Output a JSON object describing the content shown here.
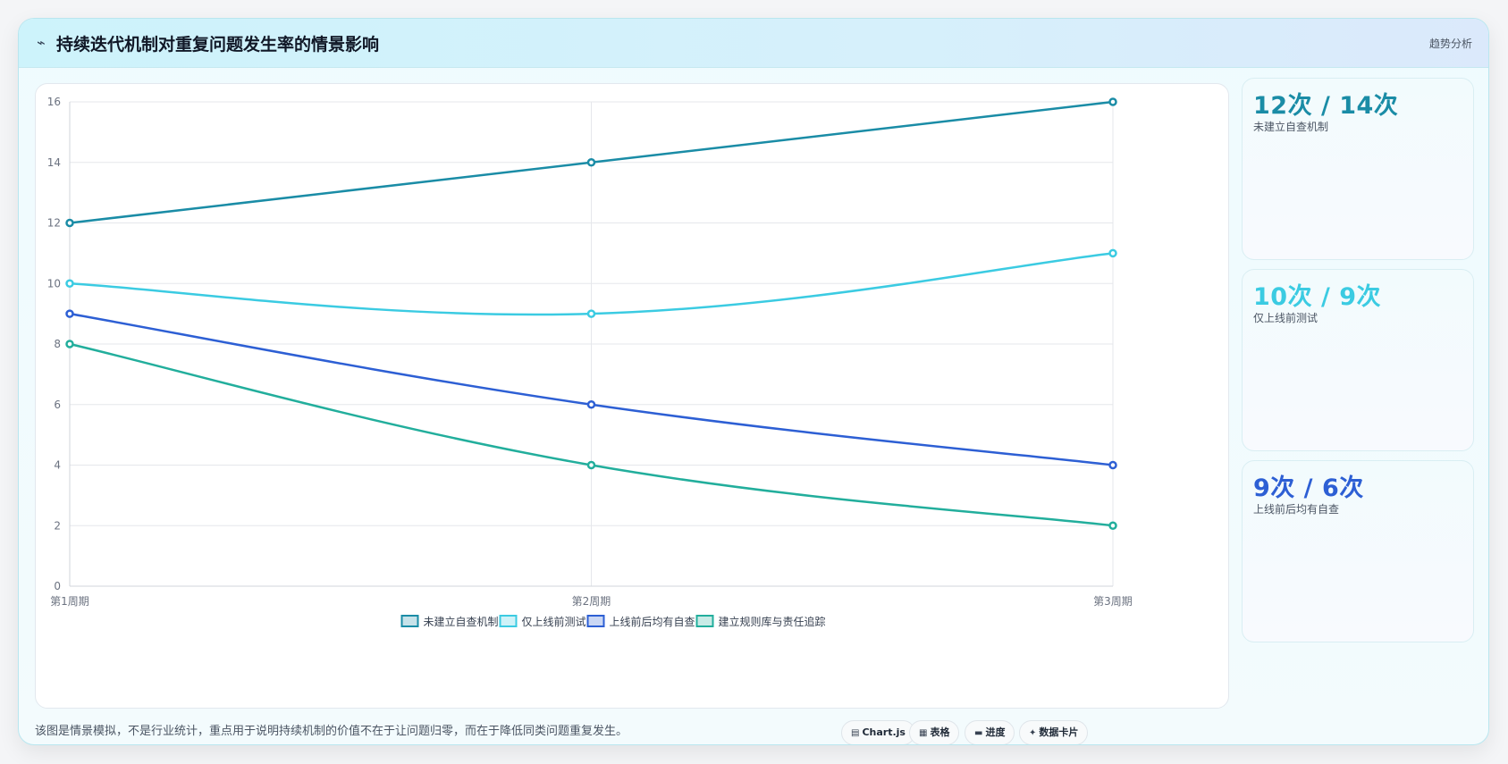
{
  "header": {
    "title_icon": "⌁",
    "title": "持续迭代机制对重复问题发生率的情景影响",
    "badge": "趋势分析"
  },
  "chart_data": {
    "type": "line",
    "categories": [
      "第1周期",
      "第2周期",
      "第3周期"
    ],
    "ylim": [
      0,
      16
    ],
    "yticks": [
      0,
      2,
      4,
      6,
      8,
      10,
      12,
      14,
      16
    ],
    "grid": true,
    "legend_position": "bottom",
    "series": [
      {
        "name": "未建立自查机制",
        "color": "#1a8ca6",
        "values": [
          12,
          14,
          16
        ]
      },
      {
        "name": "仅上线前测试",
        "color": "#3bcbe2",
        "values": [
          10,
          9,
          11
        ]
      },
      {
        "name": "上线前后均有自查",
        "color": "#2d5fd4",
        "values": [
          9,
          6,
          4
        ]
      },
      {
        "name": "建立规则库与责任追踪",
        "color": "#22ae9c",
        "values": [
          8,
          4,
          2
        ]
      }
    ]
  },
  "stats": [
    {
      "value": "12次 / 14次",
      "label": "未建立自查机制",
      "color": "#1a8ca6"
    },
    {
      "value": "10次 / 9次",
      "label": "仅上线前测试",
      "color": "#3bcbe2"
    },
    {
      "value": "9次 / 6次",
      "label": "上线前后均有自查",
      "color": "#2d5fd4"
    }
  ],
  "footnote": "该图是情景模拟，不是行业统计，重点用于说明持续机制的价值不在于让问题归零，而在于降低同类问题重复发生。",
  "chips": [
    {
      "icon": "▤",
      "icon_name": "chart-icon",
      "label": "Chart.js"
    },
    {
      "icon": "▦",
      "icon_name": "table-icon",
      "label": "表格"
    },
    {
      "icon": "▬",
      "icon_name": "progress-icon",
      "label": "进度"
    },
    {
      "icon": "✦",
      "icon_name": "sparkle-icon",
      "label": "数据卡片"
    }
  ]
}
